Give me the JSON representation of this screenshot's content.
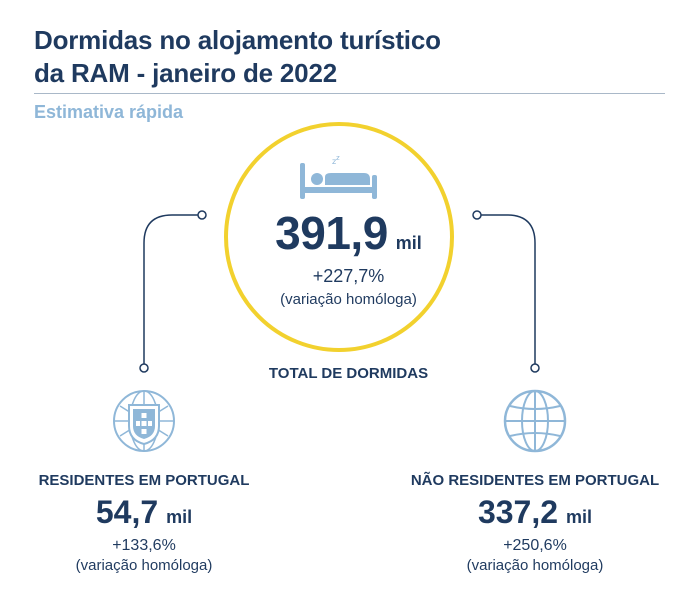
{
  "header": {
    "title_line1": "Dormidas no alojamento turístico",
    "title_line2": "da RAM - janeiro de 2022",
    "subtitle": "Estimativa rápida"
  },
  "total": {
    "value": "391,9",
    "unit": "mil",
    "change": "+227,7%",
    "note": "(variação homóloga)",
    "label": "TOTAL DE DORMIDAS",
    "icon": "bed-icon"
  },
  "residents": {
    "label": "RESIDENTES EM PORTUGAL",
    "value": "54,7",
    "unit": "mil",
    "change": "+133,6%",
    "note": "(variação homóloga)",
    "icon": "portugal-shield-icon"
  },
  "non_residents": {
    "label": "NÃO RESIDENTES EM PORTUGAL",
    "value": "337,2",
    "unit": "mil",
    "change": "+250,6%",
    "note": "(variação homóloga)",
    "icon": "globe-icon"
  },
  "colors": {
    "navy": "#1f3a5f",
    "light_blue": "#8fb7d8",
    "yellow": "#f2d12e"
  }
}
